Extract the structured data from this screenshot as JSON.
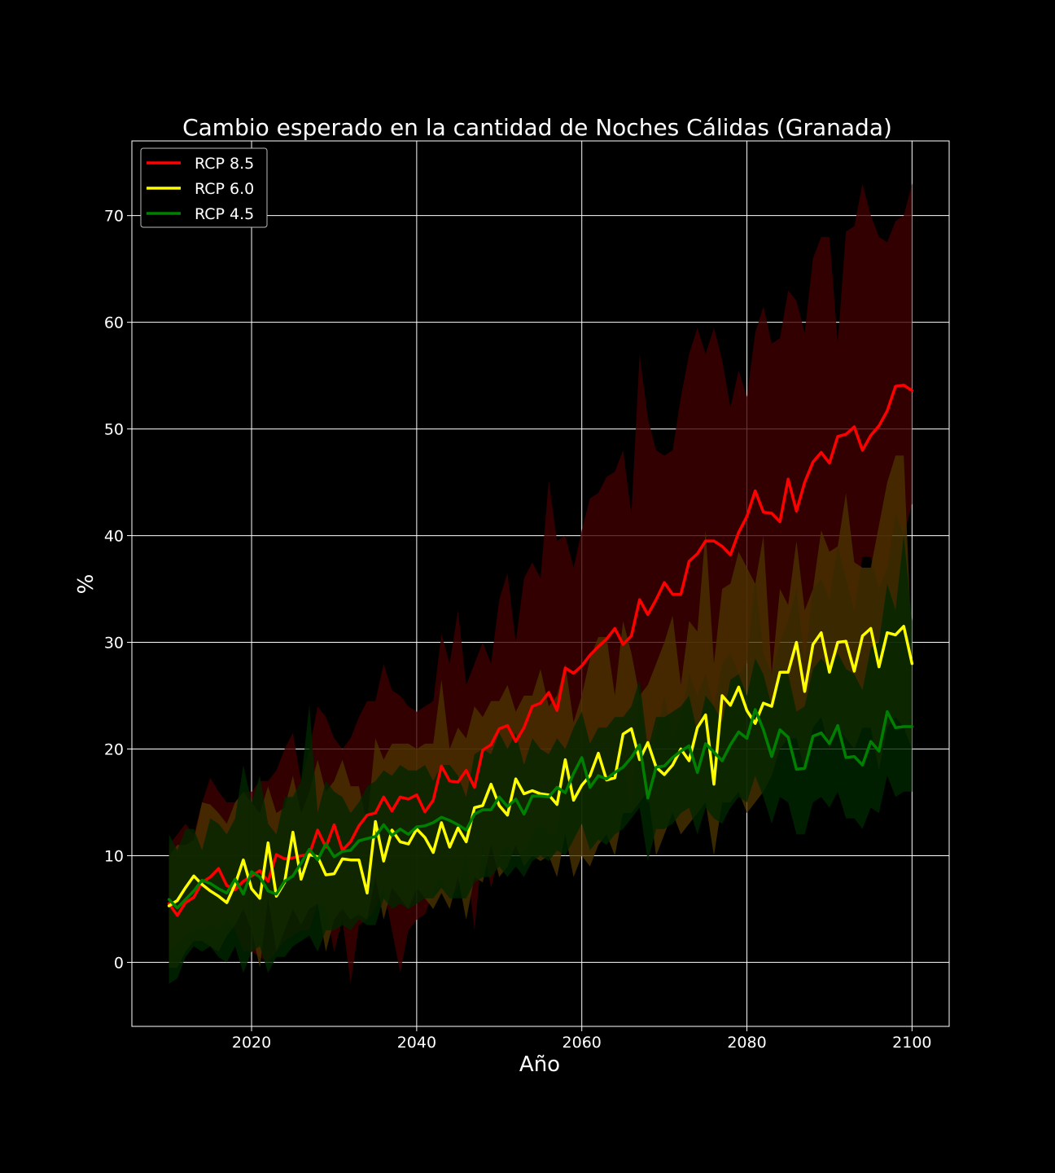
{
  "chart_data": {
    "type": "line",
    "title": "Cambio esperado en la cantidad de Noches Cálidas (Granada)",
    "xlabel": "Año",
    "ylabel": "%",
    "xlim": [
      2005.5,
      2104.5
    ],
    "ylim": [
      -6,
      77
    ],
    "xticks": [
      2020,
      2040,
      2060,
      2080,
      2100
    ],
    "yticks": [
      0,
      10,
      20,
      30,
      40,
      50,
      60,
      70
    ],
    "grid": true,
    "legend_position": "top-left",
    "background": "#000000",
    "x": [
      2010,
      2011,
      2012,
      2013,
      2014,
      2015,
      2016,
      2017,
      2018,
      2019,
      2020,
      2021,
      2022,
      2023,
      2024,
      2025,
      2026,
      2027,
      2028,
      2029,
      2030,
      2031,
      2032,
      2033,
      2034,
      2035,
      2036,
      2037,
      2038,
      2039,
      2040,
      2041,
      2042,
      2043,
      2044,
      2045,
      2046,
      2047,
      2048,
      2049,
      2050,
      2051,
      2052,
      2053,
      2054,
      2055,
      2056,
      2057,
      2058,
      2059,
      2060,
      2061,
      2062,
      2063,
      2064,
      2065,
      2066,
      2067,
      2068,
      2069,
      2070,
      2071,
      2072,
      2073,
      2074,
      2075,
      2076,
      2077,
      2078,
      2079,
      2080,
      2081,
      2082,
      2083,
      2084,
      2085,
      2086,
      2087,
      2088,
      2089,
      2090,
      2091,
      2092,
      2093,
      2094,
      2095,
      2096,
      2097,
      2098,
      2099,
      2100
    ],
    "series": [
      {
        "name": "RCP 8.5",
        "color": "#ff0000",
        "band_color": "#400000",
        "values": [
          5.5,
          4.4,
          5.6,
          6.1,
          7.5,
          8.0,
          8.8,
          7.2,
          6.8,
          7.6,
          8.1,
          8.6,
          7.6,
          10.1,
          9.7,
          9.8,
          10.0,
          10.1,
          12.4,
          10.8,
          12.9,
          10.5,
          11.3,
          12.8,
          13.8,
          14.0,
          15.5,
          14.2,
          15.5,
          15.3,
          15.7,
          14.1,
          15.2,
          18.4,
          17.0,
          16.9,
          18.0,
          16.4,
          19.9,
          20.4,
          21.9,
          22.2,
          20.7,
          22.0,
          24.0,
          24.3,
          25.3,
          23.6,
          27.6,
          27.1,
          27.8,
          28.8,
          29.6,
          30.3,
          31.3,
          29.8,
          30.6,
          34.0,
          32.6,
          34.0,
          35.6,
          34.5,
          34.5,
          37.6,
          38.3,
          39.5,
          39.5,
          39.0,
          38.2,
          40.3,
          41.8,
          44.2,
          42.2,
          42.1,
          41.3,
          45.3,
          42.3,
          45.0,
          46.9,
          47.8,
          46.8,
          49.3,
          49.5,
          50.2,
          48.0,
          49.4,
          50.3,
          51.7,
          54.0,
          54.1,
          53.6
        ],
        "upper": [
          11.0,
          12.0,
          13.0,
          12.0,
          15.0,
          17.3,
          16.0,
          15.0,
          15.0,
          16.0,
          16.0,
          17.0,
          17.0,
          18.0,
          20.0,
          21.5,
          17.0,
          20.0,
          24.0,
          23.0,
          21.0,
          20.0,
          21.0,
          23.0,
          24.5,
          24.5,
          28.0,
          25.5,
          25.0,
          24.0,
          23.5,
          24.0,
          24.5,
          30.8,
          28.0,
          33.0,
          26.0,
          28.0,
          30.0,
          28.0,
          34.0,
          36.5,
          30.0,
          36.0,
          37.5,
          36.0,
          45.2,
          39.5,
          40.0,
          37.0,
          40.5,
          43.5,
          44.0,
          45.5,
          46.0,
          48.0,
          42.0,
          57.0,
          51.0,
          48.0,
          47.5,
          48.0,
          53.0,
          57.0,
          59.5,
          57.0,
          59.5,
          56.5,
          52.0,
          55.5,
          53.0,
          59.0,
          61.5,
          58.0,
          58.5,
          63.0,
          62.0,
          59.0,
          66.0,
          68.0,
          68.0,
          58.0,
          68.5,
          69.0,
          73.0,
          70.0,
          68.0,
          67.5,
          69.5,
          70.0,
          73.0
        ],
        "lower": [
          1.0,
          1.5,
          2.5,
          3.0,
          3.0,
          3.5,
          3.0,
          4.0,
          3.0,
          1.0,
          1.0,
          0.5,
          0.0,
          1.0,
          2.0,
          2.5,
          3.0,
          3.0,
          5.5,
          5.0,
          1.0,
          4.0,
          -2.0,
          3.5,
          4.0,
          5.0,
          7.0,
          3.0,
          -1.0,
          3.0,
          4.0,
          4.5,
          6.5,
          8.0,
          6.0,
          7.0,
          10.0,
          3.0,
          11.0,
          7.0,
          10.0,
          11.0,
          10.0,
          10.5,
          12.0,
          13.0,
          12.0,
          12.0,
          17.0,
          15.0,
          18.0,
          18.0,
          17.0,
          16.0,
          18.0,
          19.0,
          14.0,
          25.0,
          18.0,
          21.0,
          25.0,
          21.0,
          23.0,
          27.0,
          25.0,
          27.0,
          24.0,
          28.0,
          29.0,
          27.0,
          28.0,
          36.0,
          29.0,
          27.0,
          30.0,
          32.0,
          35.0,
          28.0,
          35.0,
          36.0,
          34.0,
          39.0,
          36.0,
          33.0,
          38.0,
          38.0,
          35.0,
          37.0,
          42.0,
          40.0,
          43.0
        ]
      },
      {
        "name": "RCP 6.0",
        "color": "#ffff00",
        "band_color": "#4a3300",
        "values": [
          5.3,
          5.8,
          7.0,
          8.1,
          7.3,
          6.7,
          6.2,
          5.6,
          7.3,
          9.6,
          6.9,
          6.0,
          11.2,
          6.2,
          7.5,
          12.2,
          7.8,
          10.1,
          9.9,
          8.2,
          8.3,
          9.7,
          9.6,
          9.6,
          6.5,
          13.2,
          9.5,
          12.4,
          11.3,
          11.1,
          12.5,
          11.7,
          10.3,
          13.1,
          10.8,
          12.6,
          11.3,
          14.5,
          14.7,
          16.7,
          14.7,
          13.8,
          17.2,
          15.8,
          16.1,
          15.8,
          15.7,
          14.8,
          19.0,
          15.2,
          16.6,
          17.5,
          19.6,
          17.1,
          17.3,
          21.4,
          21.9,
          19.0,
          20.6,
          18.3,
          17.6,
          18.5,
          20.0,
          18.9,
          22.0,
          23.2,
          16.7,
          25.0,
          24.1,
          25.8,
          23.6,
          22.4,
          24.3,
          24.0,
          27.2,
          27.2,
          30.0,
          25.4,
          29.8,
          30.9,
          27.2,
          30.0,
          30.1,
          27.3,
          30.6,
          31.3,
          27.7,
          30.9,
          30.7,
          31.5,
          28.0
        ],
        "upper": [
          10.0,
          11.0,
          11.0,
          11.5,
          15.0,
          14.8,
          14.0,
          13.0,
          15.0,
          16.0,
          15.0,
          14.0,
          16.5,
          14.0,
          14.5,
          17.5,
          14.0,
          16.0,
          19.0,
          16.0,
          17.0,
          19.0,
          16.5,
          16.5,
          13.0,
          21.0,
          19.0,
          20.5,
          20.5,
          20.5,
          20.0,
          20.5,
          20.5,
          26.5,
          20.0,
          22.0,
          21.0,
          24.0,
          23.0,
          24.5,
          24.5,
          26.0,
          23.5,
          25.0,
          25.0,
          27.5,
          24.0,
          25.0,
          28.0,
          22.5,
          25.0,
          28.5,
          30.5,
          30.5,
          25.0,
          32.0,
          29.0,
          25.0,
          26.0,
          28.0,
          30.0,
          32.5,
          26.0,
          32.0,
          31.0,
          40.5,
          28.0,
          35.0,
          35.5,
          38.5,
          37.0,
          35.5,
          40.0,
          27.0,
          35.0,
          33.5,
          39.5,
          33.0,
          35.0,
          40.5,
          38.5,
          39.0,
          44.0,
          37.5,
          37.0,
          37.0,
          41.0,
          45.0,
          47.5,
          47.5,
          29.0
        ],
        "lower": [
          -0.5,
          -0.5,
          1.0,
          2.0,
          2.0,
          1.5,
          1.0,
          2.5,
          3.5,
          5.0,
          3.0,
          -0.5,
          6.0,
          1.0,
          3.0,
          5.0,
          3.5,
          5.0,
          5.5,
          1.0,
          4.0,
          5.0,
          4.0,
          4.5,
          4.0,
          8.0,
          4.0,
          7.0,
          6.0,
          5.0,
          7.0,
          6.0,
          5.0,
          6.5,
          5.0,
          8.0,
          4.0,
          8.0,
          7.5,
          11.0,
          8.0,
          9.0,
          11.0,
          9.0,
          10.0,
          9.5,
          10.0,
          8.0,
          12.0,
          8.0,
          10.0,
          9.0,
          11.0,
          12.0,
          10.0,
          14.0,
          14.0,
          15.0,
          16.0,
          10.0,
          12.0,
          14.0,
          12.0,
          13.0,
          14.0,
          15.0,
          10.0,
          15.0,
          15.0,
          16.0,
          14.0,
          15.0,
          16.0,
          17.5,
          20.0,
          21.0,
          21.0,
          18.0,
          22.0,
          23.0,
          20.0,
          22.0,
          21.0,
          20.0,
          22.0,
          22.0,
          18.0,
          22.0,
          23.0,
          22.0,
          20.0
        ]
      },
      {
        "name": "RCP 4.5",
        "color": "#008000",
        "band_color": "#002600",
        "values": [
          5.9,
          5.1,
          5.9,
          6.7,
          7.7,
          7.4,
          6.9,
          6.5,
          7.8,
          6.4,
          8.5,
          8.0,
          6.7,
          6.4,
          7.6,
          8.1,
          9.3,
          10.6,
          9.6,
          11.1,
          9.9,
          10.4,
          10.5,
          11.4,
          11.6,
          11.8,
          12.9,
          11.9,
          12.5,
          12.0,
          12.7,
          12.8,
          13.1,
          13.6,
          13.3,
          12.9,
          12.4,
          13.9,
          14.3,
          14.3,
          15.5,
          14.6,
          15.3,
          13.9,
          15.6,
          15.6,
          15.5,
          16.4,
          15.9,
          17.7,
          19.2,
          16.4,
          17.5,
          17.2,
          17.8,
          18.3,
          19.2,
          20.4,
          15.4,
          18.3,
          18.4,
          19.2,
          19.8,
          20.3,
          17.8,
          20.5,
          19.7,
          18.9,
          20.4,
          21.6,
          21.0,
          23.7,
          21.8,
          19.3,
          21.8,
          21.1,
          18.1,
          18.2,
          21.2,
          21.5,
          20.5,
          22.2,
          19.2,
          19.3,
          18.5,
          20.7,
          19.8,
          23.5,
          22.0,
          22.1,
          22.1
        ],
        "upper": [
          12.0,
          10.5,
          12.5,
          12.5,
          10.5,
          13.5,
          13.0,
          12.0,
          13.5,
          18.5,
          15.0,
          17.5,
          13.0,
          12.0,
          15.5,
          15.5,
          17.0,
          24.2,
          14.0,
          17.0,
          16.0,
          15.5,
          14.0,
          15.0,
          16.5,
          17.0,
          18.0,
          17.5,
          18.5,
          18.0,
          18.0,
          18.5,
          17.0,
          18.5,
          18.5,
          17.5,
          15.5,
          19.5,
          20.0,
          19.5,
          21.5,
          20.0,
          21.5,
          18.5,
          21.0,
          20.0,
          19.5,
          21.0,
          20.0,
          22.0,
          23.5,
          20.5,
          22.0,
          22.0,
          23.0,
          23.0,
          24.0,
          26.5,
          20.0,
          23.0,
          23.0,
          23.5,
          24.0,
          25.0,
          21.5,
          25.0,
          24.0,
          22.5,
          26.5,
          27.0,
          25.0,
          28.5,
          27.0,
          24.0,
          27.5,
          27.0,
          23.5,
          24.0,
          27.5,
          28.5,
          27.5,
          29.0,
          27.5,
          27.0,
          25.5,
          29.5,
          30.0,
          35.5,
          33.0,
          40.0,
          32.0
        ],
        "lower": [
          -2.0,
          -1.5,
          0.5,
          1.5,
          1.0,
          1.5,
          0.5,
          0.0,
          1.5,
          -1.0,
          1.0,
          1.5,
          -1.0,
          0.5,
          0.5,
          1.5,
          2.0,
          2.5,
          1.0,
          3.0,
          3.0,
          3.5,
          3.0,
          4.0,
          3.5,
          3.5,
          6.0,
          5.0,
          5.5,
          5.0,
          5.5,
          6.0,
          6.0,
          7.0,
          6.0,
          6.0,
          6.0,
          7.5,
          8.0,
          8.0,
          9.0,
          8.0,
          9.0,
          8.0,
          9.5,
          10.0,
          9.5,
          10.5,
          10.0,
          11.5,
          13.0,
          10.5,
          11.5,
          11.0,
          12.0,
          12.5,
          13.5,
          14.5,
          9.5,
          12.5,
          12.5,
          13.0,
          14.0,
          14.5,
          12.0,
          14.5,
          13.5,
          13.0,
          14.5,
          15.5,
          15.0,
          17.5,
          15.5,
          13.0,
          15.5,
          15.0,
          12.0,
          12.0,
          15.0,
          15.5,
          14.5,
          16.0,
          13.5,
          13.5,
          12.5,
          14.5,
          14.0,
          17.5,
          15.5,
          16.0,
          16.0
        ]
      }
    ]
  }
}
